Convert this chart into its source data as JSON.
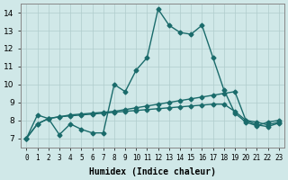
{
  "xlabel": "Humidex (Indice chaleur)",
  "ylabel": "",
  "xlim": [
    -0.5,
    23.5
  ],
  "ylim": [
    6.5,
    14.5
  ],
  "yticks": [
    7,
    8,
    9,
    10,
    11,
    12,
    13,
    14
  ],
  "xticks": [
    0,
    1,
    2,
    3,
    4,
    5,
    6,
    7,
    8,
    9,
    10,
    11,
    12,
    13,
    14,
    15,
    16,
    17,
    18,
    19,
    20,
    21,
    22,
    23
  ],
  "xtick_labels": [
    "0",
    "1",
    "2",
    "3",
    "4",
    "5",
    "6",
    "7",
    "8",
    "9",
    "10",
    "11",
    "12",
    "13",
    "14",
    "15",
    "16",
    "17",
    "18",
    "19",
    "20",
    "21",
    "22",
    "23"
  ],
  "bg_color": "#d0e8e8",
  "line_color": "#1a6b6b",
  "grid_color": "#b0cccc",
  "line1_x": [
    0,
    1,
    2,
    3,
    4,
    5,
    6,
    7,
    8,
    9,
    10,
    11,
    12,
    13,
    14,
    15,
    16,
    17,
    18,
    19,
    20,
    21,
    22,
    23
  ],
  "line1_y": [
    7.0,
    8.3,
    8.1,
    7.2,
    7.8,
    7.5,
    7.3,
    7.3,
    10.0,
    9.6,
    10.8,
    11.5,
    14.2,
    13.3,
    12.9,
    12.8,
    13.3,
    11.5,
    9.7,
    8.4,
    7.9,
    7.7,
    7.9,
    8.0
  ],
  "line2_x": [
    0,
    1,
    2,
    3,
    4,
    5,
    6,
    7,
    8,
    9,
    10,
    11,
    12,
    13,
    14,
    15,
    16,
    17,
    18,
    19,
    20,
    21,
    22,
    23
  ],
  "line2_y": [
    7.0,
    7.8,
    8.1,
    8.2,
    8.3,
    8.35,
    8.4,
    8.45,
    8.5,
    8.6,
    8.7,
    8.8,
    8.9,
    9.0,
    9.1,
    9.2,
    9.3,
    9.4,
    9.5,
    9.6,
    8.0,
    7.9,
    7.75,
    7.9
  ],
  "line3_x": [
    0,
    1,
    2,
    3,
    4,
    5,
    6,
    7,
    8,
    9,
    10,
    11,
    12,
    13,
    14,
    15,
    16,
    17,
    18,
    19,
    20,
    21,
    22,
    23
  ],
  "line3_y": [
    7.0,
    7.8,
    8.1,
    8.2,
    8.25,
    8.3,
    8.35,
    8.4,
    8.45,
    8.5,
    8.55,
    8.6,
    8.65,
    8.7,
    8.75,
    8.8,
    8.85,
    8.9,
    8.9,
    8.5,
    8.0,
    7.75,
    7.65,
    7.85
  ]
}
